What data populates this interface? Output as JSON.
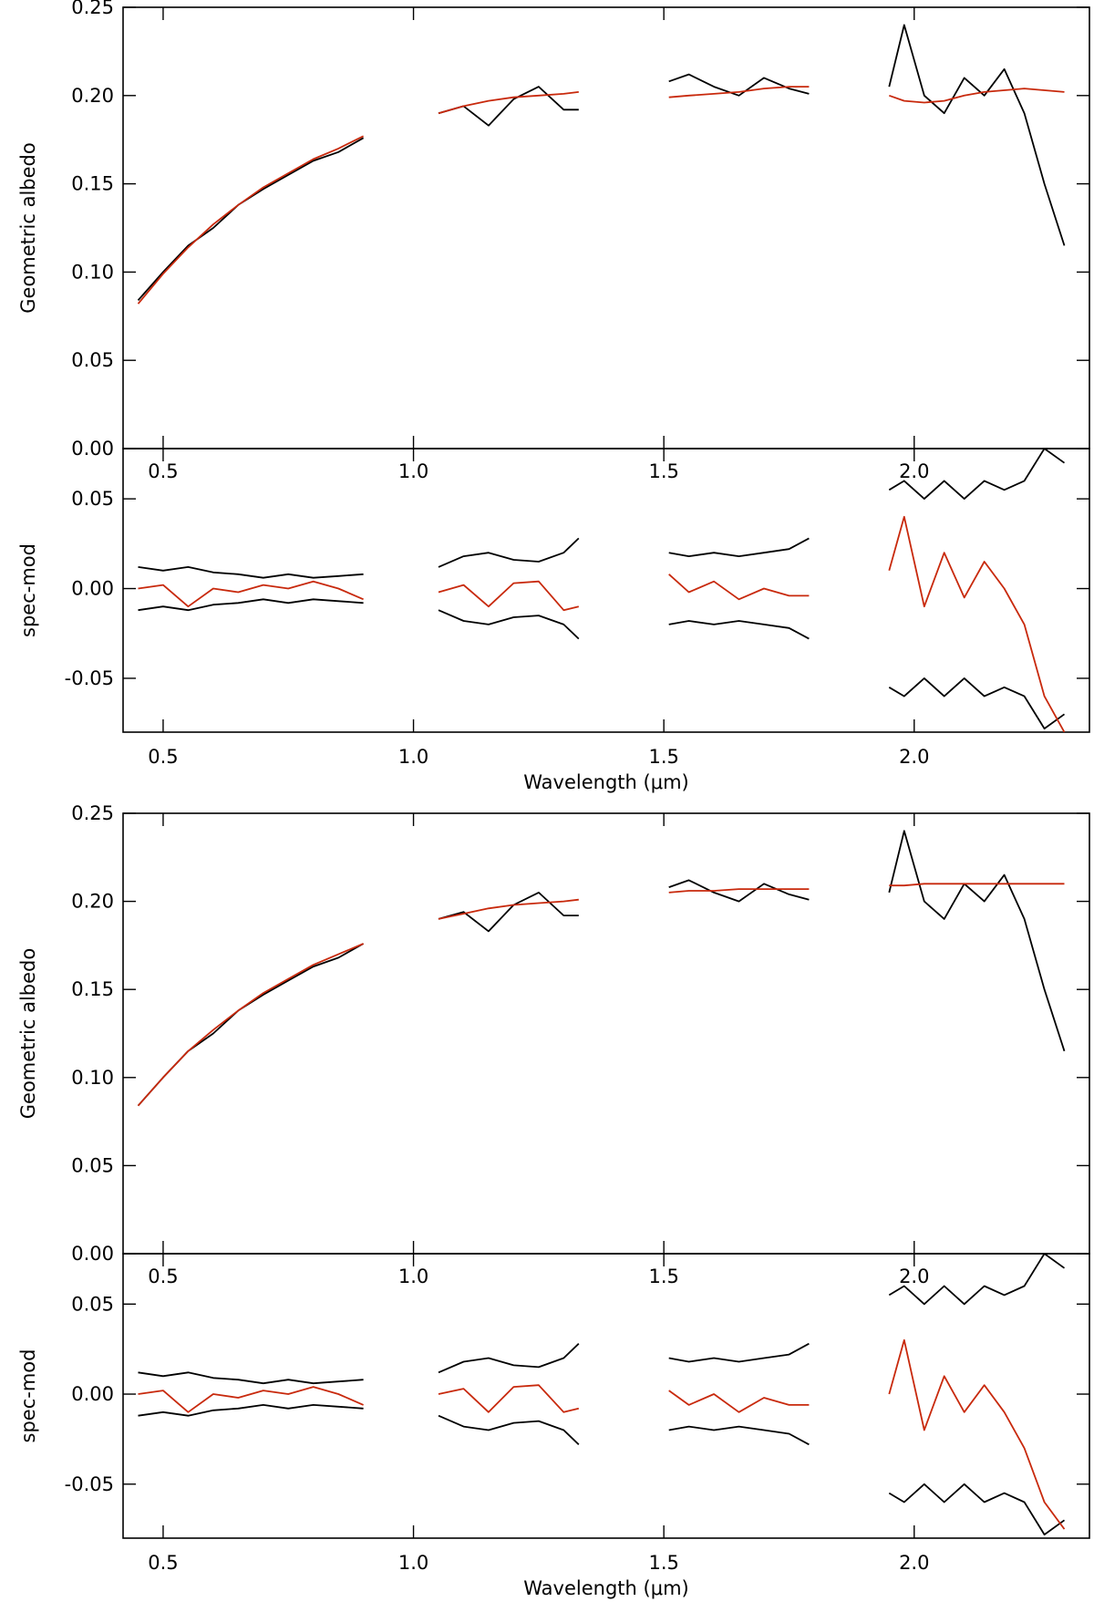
{
  "colors": {
    "data": "#000000",
    "model": "#c8290c"
  },
  "chart_data": [
    {
      "type": "line",
      "panel": "upper",
      "ylabel": "Geometric albedo",
      "xlim": [
        0.42,
        2.35
      ],
      "ylim": [
        0.0,
        0.25
      ],
      "yticks": [
        "0.00",
        "0.05",
        "0.10",
        "0.15",
        "0.20",
        "0.25"
      ],
      "xticks": [
        "0.5",
        "1.0",
        "1.5",
        "2.0"
      ],
      "segments": [
        {
          "x": [
            0.45,
            0.5,
            0.55,
            0.6,
            0.65,
            0.7,
            0.75,
            0.8,
            0.85,
            0.9
          ],
          "spectrum": [
            0.084,
            0.1,
            0.115,
            0.125,
            0.138,
            0.147,
            0.155,
            0.163,
            0.168,
            0.176
          ],
          "model": [
            0.082,
            0.099,
            0.114,
            0.127,
            0.138,
            0.148,
            0.156,
            0.164,
            0.17,
            0.177
          ]
        },
        {
          "x": [
            1.05,
            1.1,
            1.15,
            1.2,
            1.25,
            1.3,
            1.33
          ],
          "spectrum": [
            0.19,
            0.194,
            0.183,
            0.198,
            0.205,
            0.192,
            0.192
          ],
          "model": [
            0.19,
            0.194,
            0.197,
            0.199,
            0.2,
            0.201,
            0.202
          ]
        },
        {
          "x": [
            1.51,
            1.55,
            1.6,
            1.65,
            1.7,
            1.75,
            1.79
          ],
          "spectrum": [
            0.208,
            0.212,
            0.205,
            0.2,
            0.21,
            0.204,
            0.201
          ],
          "model": [
            0.199,
            0.2,
            0.201,
            0.202,
            0.204,
            0.205,
            0.205
          ]
        },
        {
          "x": [
            1.95,
            1.98,
            2.02,
            2.06,
            2.1,
            2.14,
            2.18,
            2.22,
            2.26,
            2.3
          ],
          "spectrum": [
            0.205,
            0.24,
            0.2,
            0.19,
            0.21,
            0.2,
            0.215,
            0.19,
            0.15,
            0.115
          ],
          "model": [
            0.2,
            0.197,
            0.196,
            0.197,
            0.2,
            0.202,
            0.203,
            0.204,
            0.203,
            0.202
          ]
        }
      ]
    },
    {
      "type": "line",
      "panel": "residual",
      "ylabel": "spec-mod",
      "xlabel": "Wavelength (μm)",
      "xlim": [
        0.42,
        2.35
      ],
      "ylim": [
        -0.08,
        0.078
      ],
      "yticks": [
        "-0.05",
        "0.00",
        "0.05"
      ],
      "xticks": [
        "0.5",
        "1.0",
        "1.5",
        "2.0"
      ],
      "segments": [
        {
          "x": [
            0.45,
            0.5,
            0.55,
            0.6,
            0.65,
            0.7,
            0.75,
            0.8,
            0.85,
            0.9
          ],
          "residual": [
            0.0,
            0.002,
            -0.01,
            0.0,
            -0.002,
            0.002,
            0.0,
            0.004,
            0.0,
            -0.006
          ],
          "upper_error": [
            0.012,
            0.01,
            0.012,
            0.009,
            0.008,
            0.006,
            0.008,
            0.006,
            0.007,
            0.008
          ],
          "lower_error": [
            -0.012,
            -0.01,
            -0.012,
            -0.009,
            -0.008,
            -0.006,
            -0.008,
            -0.006,
            -0.007,
            -0.008
          ]
        },
        {
          "x": [
            1.05,
            1.1,
            1.15,
            1.2,
            1.25,
            1.3,
            1.33
          ],
          "residual": [
            -0.002,
            0.002,
            -0.01,
            0.003,
            0.004,
            -0.012,
            -0.01
          ],
          "upper_error": [
            0.012,
            0.018,
            0.02,
            0.016,
            0.015,
            0.02,
            0.028
          ],
          "lower_error": [
            -0.012,
            -0.018,
            -0.02,
            -0.016,
            -0.015,
            -0.02,
            -0.028
          ]
        },
        {
          "x": [
            1.51,
            1.55,
            1.6,
            1.65,
            1.7,
            1.75,
            1.79
          ],
          "residual": [
            0.008,
            -0.002,
            0.004,
            -0.006,
            0.0,
            -0.004,
            -0.004
          ],
          "upper_error": [
            0.02,
            0.018,
            0.02,
            0.018,
            0.02,
            0.022,
            0.028
          ],
          "lower_error": [
            -0.02,
            -0.018,
            -0.02,
            -0.018,
            -0.02,
            -0.022,
            -0.028
          ]
        },
        {
          "x": [
            1.95,
            1.98,
            2.02,
            2.06,
            2.1,
            2.14,
            2.18,
            2.22,
            2.26,
            2.3
          ],
          "residual": [
            0.01,
            0.04,
            -0.01,
            0.02,
            -0.005,
            0.015,
            0.0,
            -0.02,
            -0.06,
            -0.08
          ],
          "upper_error": [
            0.055,
            0.06,
            0.05,
            0.06,
            0.05,
            0.06,
            0.055,
            0.06,
            0.078,
            0.07
          ],
          "lower_error": [
            -0.055,
            -0.06,
            -0.05,
            -0.06,
            -0.05,
            -0.06,
            -0.055,
            -0.06,
            -0.078,
            -0.07
          ]
        }
      ]
    },
    {
      "type": "line",
      "panel": "upper",
      "ylabel": "Geometric albedo",
      "xlim": [
        0.42,
        2.35
      ],
      "ylim": [
        0.0,
        0.25
      ],
      "yticks": [
        "0.00",
        "0.05",
        "0.10",
        "0.15",
        "0.20",
        "0.25"
      ],
      "xticks": [
        "0.5",
        "1.0",
        "1.5",
        "2.0"
      ],
      "segments": [
        {
          "x": [
            0.45,
            0.5,
            0.55,
            0.6,
            0.65,
            0.7,
            0.75,
            0.8,
            0.85,
            0.9
          ],
          "spectrum": [
            0.084,
            0.1,
            0.115,
            0.125,
            0.138,
            0.147,
            0.155,
            0.163,
            0.168,
            0.176
          ],
          "model": [
            0.084,
            0.1,
            0.115,
            0.127,
            0.138,
            0.148,
            0.156,
            0.164,
            0.17,
            0.176
          ]
        },
        {
          "x": [
            1.05,
            1.1,
            1.15,
            1.2,
            1.25,
            1.3,
            1.33
          ],
          "spectrum": [
            0.19,
            0.194,
            0.183,
            0.198,
            0.205,
            0.192,
            0.192
          ],
          "model": [
            0.19,
            0.193,
            0.196,
            0.198,
            0.199,
            0.2,
            0.201
          ]
        },
        {
          "x": [
            1.51,
            1.55,
            1.6,
            1.65,
            1.7,
            1.75,
            1.79
          ],
          "spectrum": [
            0.208,
            0.212,
            0.205,
            0.2,
            0.21,
            0.204,
            0.201
          ],
          "model": [
            0.205,
            0.206,
            0.206,
            0.207,
            0.207,
            0.207,
            0.207
          ]
        },
        {
          "x": [
            1.95,
            1.98,
            2.02,
            2.06,
            2.1,
            2.14,
            2.18,
            2.22,
            2.26,
            2.3
          ],
          "spectrum": [
            0.205,
            0.24,
            0.2,
            0.19,
            0.21,
            0.2,
            0.215,
            0.19,
            0.15,
            0.115
          ],
          "model": [
            0.209,
            0.209,
            0.21,
            0.21,
            0.21,
            0.21,
            0.21,
            0.21,
            0.21,
            0.21
          ]
        }
      ]
    },
    {
      "type": "line",
      "panel": "residual",
      "ylabel": "spec-mod",
      "xlabel": "Wavelength (μm)",
      "xlim": [
        0.42,
        2.35
      ],
      "ylim": [
        -0.08,
        0.078
      ],
      "yticks": [
        "-0.05",
        "0.00",
        "0.05"
      ],
      "xticks": [
        "0.5",
        "1.0",
        "1.5",
        "2.0"
      ],
      "segments": [
        {
          "x": [
            0.45,
            0.5,
            0.55,
            0.6,
            0.65,
            0.7,
            0.75,
            0.8,
            0.85,
            0.9
          ],
          "residual": [
            0.0,
            0.002,
            -0.01,
            0.0,
            -0.002,
            0.002,
            0.0,
            0.004,
            0.0,
            -0.006
          ],
          "upper_error": [
            0.012,
            0.01,
            0.012,
            0.009,
            0.008,
            0.006,
            0.008,
            0.006,
            0.007,
            0.008
          ],
          "lower_error": [
            -0.012,
            -0.01,
            -0.012,
            -0.009,
            -0.008,
            -0.006,
            -0.008,
            -0.006,
            -0.007,
            -0.008
          ]
        },
        {
          "x": [
            1.05,
            1.1,
            1.15,
            1.2,
            1.25,
            1.3,
            1.33
          ],
          "residual": [
            0.0,
            0.003,
            -0.01,
            0.004,
            0.005,
            -0.01,
            -0.008
          ],
          "upper_error": [
            0.012,
            0.018,
            0.02,
            0.016,
            0.015,
            0.02,
            0.028
          ],
          "lower_error": [
            -0.012,
            -0.018,
            -0.02,
            -0.016,
            -0.015,
            -0.02,
            -0.028
          ]
        },
        {
          "x": [
            1.51,
            1.55,
            1.6,
            1.65,
            1.7,
            1.75,
            1.79
          ],
          "residual": [
            0.002,
            -0.006,
            0.0,
            -0.01,
            -0.002,
            -0.006,
            -0.006
          ],
          "upper_error": [
            0.02,
            0.018,
            0.02,
            0.018,
            0.02,
            0.022,
            0.028
          ],
          "lower_error": [
            -0.02,
            -0.018,
            -0.02,
            -0.018,
            -0.02,
            -0.022,
            -0.028
          ]
        },
        {
          "x": [
            1.95,
            1.98,
            2.02,
            2.06,
            2.1,
            2.14,
            2.18,
            2.22,
            2.26,
            2.3
          ],
          "residual": [
            0.0,
            0.03,
            -0.02,
            0.01,
            -0.01,
            0.005,
            -0.01,
            -0.03,
            -0.06,
            -0.075
          ],
          "upper_error": [
            0.055,
            0.06,
            0.05,
            0.06,
            0.05,
            0.06,
            0.055,
            0.06,
            0.078,
            0.07
          ],
          "lower_error": [
            -0.055,
            -0.06,
            -0.05,
            -0.06,
            -0.05,
            -0.06,
            -0.055,
            -0.06,
            -0.078,
            -0.07
          ]
        }
      ]
    }
  ]
}
